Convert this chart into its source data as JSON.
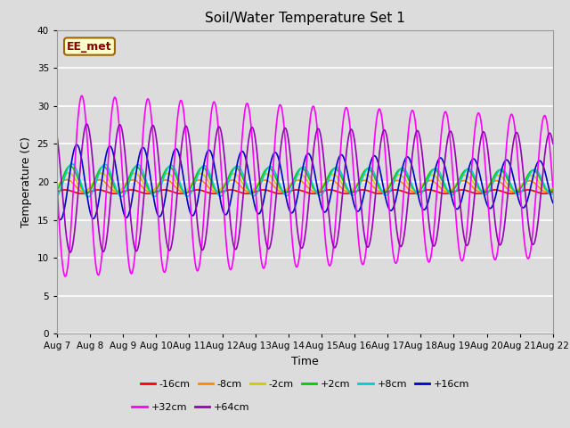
{
  "title": "Soil/Water Temperature Set 1",
  "xlabel": "Time",
  "ylabel": "Temperature (C)",
  "ylim": [
    0,
    40
  ],
  "yticks": [
    0,
    5,
    10,
    15,
    20,
    25,
    30,
    35,
    40
  ],
  "n_days": 15,
  "n_points": 1440,
  "bg_color": "#dcdcdc",
  "annotation_text": "EE_met",
  "annotation_bg": "#ffffcc",
  "annotation_border": "#996600",
  "date_labels": [
    "Aug 7",
    "Aug 8",
    "Aug 9",
    "Aug 10",
    "Aug 11",
    "Aug 12",
    "Aug 13",
    "Aug 14",
    "Aug 15",
    "Aug 16",
    "Aug 17",
    "Aug 18",
    "Aug 19",
    "Aug 20",
    "Aug 21",
    "Aug 22"
  ],
  "series": [
    {
      "label": "-16cm",
      "color": "#ff0000",
      "mean": 18.7,
      "amp": 0.25,
      "phase": 0.0,
      "amp_decay": 0.0,
      "mean_decay": 0.0
    },
    {
      "label": "-8cm",
      "color": "#ff8800",
      "mean": 19.5,
      "amp": 0.8,
      "phase": 0.05,
      "amp_decay": 0.02,
      "mean_decay": -0.03
    },
    {
      "label": "-2cm",
      "color": "#cccc00",
      "mean": 20.0,
      "amp": 1.2,
      "phase": 0.1,
      "amp_decay": 0.04,
      "mean_decay": -0.05
    },
    {
      "label": "+2cm",
      "color": "#00cc00",
      "mean": 20.3,
      "amp": 1.8,
      "phase": 0.15,
      "amp_decay": 0.05,
      "mean_decay": -0.06
    },
    {
      "label": "+8cm",
      "color": "#00cccc",
      "mean": 20.2,
      "amp": 2.2,
      "phase": 0.2,
      "amp_decay": 0.06,
      "mean_decay": -0.07
    },
    {
      "label": "+16cm",
      "color": "#0000cc",
      "mean": 20.0,
      "amp": 5.0,
      "phase": 0.35,
      "amp_decay": 0.1,
      "mean_decay": -0.1
    },
    {
      "label": "+32cm",
      "color": "#ff00ff",
      "mean": 19.5,
      "amp": 12.0,
      "phase": 0.5,
      "amp_decay": 0.05,
      "mean_decay": -0.05
    },
    {
      "label": "+64cm",
      "color": "#9900bb",
      "mean": 19.2,
      "amp": 8.5,
      "phase": 0.65,
      "amp_decay": 0.03,
      "mean_decay": -0.03
    }
  ]
}
